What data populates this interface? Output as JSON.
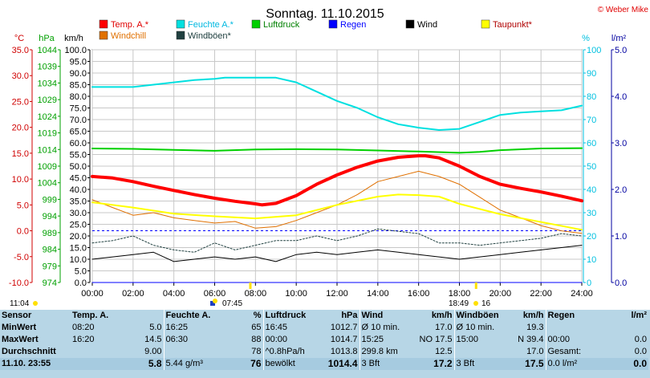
{
  "chart_data": {
    "type": "line",
    "title": "Sonntag. 11.10.2015",
    "watermark": "© Weber Mike",
    "x_ticks": [
      "00:00",
      "02:00",
      "04:00",
      "06:00",
      "08:00",
      "10:00",
      "12:00",
      "14:00",
      "16:00",
      "18:00",
      "20:00",
      "22:00",
      "24:00"
    ],
    "x_range_hours": [
      0,
      24
    ],
    "axes": {
      "temp": {
        "label": "°C",
        "ticks": [
          "35.0",
          "30.0",
          "25.0",
          "20.0",
          "15.0",
          "10.0",
          "5.0",
          "0.0",
          "-5.0",
          "-10.0"
        ],
        "range": [
          -10,
          35
        ],
        "color": "#d00000"
      },
      "pressure": {
        "label": "hPa",
        "ticks": [
          "1044",
          "1039",
          "1034",
          "1029",
          "1024",
          "1019",
          "1014",
          "1009",
          "1004",
          "999",
          "994",
          "989",
          "984",
          "979",
          "974"
        ],
        "range": [
          974,
          1044
        ],
        "color": "#00a000"
      },
      "wind": {
        "label": "km/h",
        "ticks": [
          "100.0",
          "95.0",
          "90.0",
          "85.0",
          "80.0",
          "75.0",
          "70.0",
          "65.0",
          "60.0",
          "55.0",
          "50.0",
          "45.0",
          "40.0",
          "35.0",
          "30.0",
          "25.0",
          "20.0",
          "15.0",
          "10.0",
          "5.0",
          "0.0"
        ],
        "range": [
          0,
          100
        ],
        "color": "#000000"
      },
      "humidity": {
        "label": "%",
        "ticks": [
          "100",
          "90",
          "80",
          "70",
          "60",
          "50",
          "40",
          "30",
          "20",
          "10",
          "0"
        ],
        "range": [
          0,
          100
        ],
        "color": "#00c0e0"
      },
      "rain": {
        "label": "l/m²",
        "ticks": [
          "5.0",
          "4.0",
          "3.0",
          "2.0",
          "1.0",
          "0.0"
        ],
        "range": [
          0,
          5
        ],
        "color": "#0000a0"
      }
    },
    "legend": [
      {
        "name": "Temp. A.*",
        "color": "#ff0000"
      },
      {
        "name": "Feuchte A.*",
        "color": "#00e0e0"
      },
      {
        "name": "Luftdruck",
        "color": "#00d000"
      },
      {
        "name": "Regen",
        "color": "#0000ff"
      },
      {
        "name": "Wind",
        "color": "#000000"
      },
      {
        "name": "Taupunkt*",
        "color": "#ffff00"
      },
      {
        "name": "Windchill",
        "color": "#e07000"
      },
      {
        "name": "Windböen*",
        "color": "#204040"
      }
    ],
    "series": [
      {
        "name": "Temp. A.*",
        "axis": "temp",
        "color": "#ff0000",
        "width": 4,
        "x": [
          0,
          1,
          2,
          3,
          4,
          5,
          6,
          7,
          8,
          8.33,
          9,
          10,
          11,
          12,
          13,
          14,
          15,
          16,
          16.33,
          17,
          18,
          19,
          20,
          21,
          22,
          23,
          24
        ],
        "y": [
          10.5,
          10.2,
          9.5,
          8.6,
          7.8,
          7.0,
          6.3,
          5.7,
          5.2,
          5.0,
          5.3,
          6.8,
          9.0,
          10.8,
          12.3,
          13.5,
          14.2,
          14.5,
          14.5,
          14.1,
          12.5,
          10.5,
          9.0,
          8.2,
          7.5,
          6.7,
          5.8
        ]
      },
      {
        "name": "Feuchte A.*",
        "axis": "humidity",
        "color": "#00e0e0",
        "width": 2,
        "x": [
          0,
          1,
          2,
          3,
          4,
          5,
          6,
          6.5,
          7,
          8,
          9,
          10,
          11,
          12,
          13,
          14,
          15,
          16,
          17,
          18,
          19,
          20,
          21,
          22,
          23,
          24
        ],
        "y": [
          84,
          84,
          84,
          85,
          86,
          87,
          87.5,
          88,
          88,
          88,
          88,
          86,
          82,
          78,
          75,
          71,
          68,
          66.5,
          65.5,
          66,
          69,
          72,
          73,
          73.5,
          74,
          76
        ]
      },
      {
        "name": "Luftdruck",
        "axis": "pressure",
        "color": "#00d000",
        "width": 2,
        "x": [
          0,
          2,
          4,
          6,
          8,
          10,
          12,
          14,
          16,
          18,
          19,
          20,
          22,
          24
        ],
        "y": [
          1014.3,
          1014.2,
          1013.9,
          1013.6,
          1014.0,
          1014.1,
          1014.0,
          1013.7,
          1013.4,
          1013.0,
          1013.3,
          1013.8,
          1014.3,
          1014.4
        ]
      },
      {
        "name": "Taupunkt*",
        "axis": "temp",
        "color": "#ffff00",
        "width": 2,
        "x": [
          0,
          2,
          4,
          6,
          8,
          10,
          12,
          14,
          15,
          16,
          17,
          18,
          20,
          22,
          24
        ],
        "y": [
          5.5,
          4.5,
          3.3,
          2.8,
          2.4,
          3.0,
          5.0,
          6.6,
          7.0,
          6.9,
          6.6,
          5.2,
          3.2,
          1.7,
          0.2
        ]
      },
      {
        "name": "Windchill",
        "axis": "temp",
        "color": "#e07000",
        "width": 1,
        "x": [
          0,
          1,
          2,
          3,
          4,
          5,
          6,
          7,
          8,
          9,
          10,
          11,
          12,
          13,
          14,
          15,
          16,
          17,
          18,
          19,
          20,
          21,
          22,
          23,
          24
        ],
        "y": [
          6.0,
          4.5,
          3.0,
          3.5,
          2.5,
          2.0,
          1.5,
          1.8,
          0.5,
          0.8,
          2.0,
          3.5,
          5.0,
          7.0,
          9.5,
          10.5,
          11.5,
          10.5,
          9.0,
          6.5,
          4.0,
          2.5,
          1.0,
          0.0,
          -0.5
        ]
      },
      {
        "name": "Wind",
        "axis": "wind",
        "color": "#000000",
        "width": 1,
        "x": [
          0,
          1,
          2,
          3,
          4,
          5,
          6,
          7,
          8,
          9,
          10,
          11,
          12,
          13,
          14,
          15,
          16,
          17,
          18,
          19,
          20,
          21,
          22,
          23,
          24
        ],
        "y": [
          10,
          11,
          12,
          13,
          9,
          10,
          11,
          10,
          11,
          9,
          12,
          13,
          12,
          13,
          14,
          13,
          12,
          11,
          10,
          11,
          12,
          13,
          14,
          15,
          16
        ]
      },
      {
        "name": "Windböen*",
        "axis": "wind",
        "color": "#204040",
        "width": 1,
        "dash": "2,2",
        "x": [
          0,
          1,
          2,
          3,
          4,
          5,
          6,
          7,
          8,
          9,
          10,
          11,
          12,
          13,
          14,
          15,
          16,
          17,
          18,
          19,
          20,
          21,
          22,
          23,
          24
        ],
        "y": [
          17,
          18,
          20,
          16,
          14,
          13,
          17,
          14,
          16,
          18,
          18,
          20,
          18,
          20,
          23,
          22,
          21,
          17,
          17,
          16,
          17,
          18,
          19,
          21,
          20
        ]
      },
      {
        "name": "Regen",
        "axis": "rain",
        "color": "#0000ff",
        "width": 1,
        "x": [
          0,
          24
        ],
        "y": [
          0,
          0
        ]
      }
    ],
    "freezing_line_temp": 0,
    "events": {
      "sunrise": "07:45",
      "sunset": "18:49",
      "moonrise": "11:04",
      "moon_day": "16"
    }
  },
  "summary": {
    "headers": [
      "Sensor",
      "Temp. A.",
      "",
      "Feuchte A.",
      "%",
      "Luftdruck",
      "hPa",
      "Wind",
      "km/h",
      "Windböen",
      "km/h",
      "Regen",
      "l/m²"
    ],
    "rows": [
      {
        "label": "MinWert",
        "cells": [
          "08:20",
          "5.0",
          "16:25",
          "65",
          "16:45",
          "1012.7",
          "Ø 10 min.",
          "17.0",
          "Ø 10 min.",
          "19.3",
          "",
          ""
        ]
      },
      {
        "label": "MaxWert",
        "cells": [
          "16:20",
          "14.5",
          "06:30",
          "88",
          "00:00",
          "1014.7",
          "15:25",
          "NO 17.5",
          "15:00",
          "N 39.4",
          "00:00",
          "0.0"
        ]
      },
      {
        "label": "Durchschnitt",
        "cells": [
          "",
          "9.00",
          "",
          "78",
          "^0.8hPa/h",
          "1013.8",
          "299.8 km",
          "12.5",
          "",
          "17.0",
          "Gesamt:",
          "0.0"
        ]
      },
      {
        "label": "11.10. 23:55",
        "cells": [
          "",
          "5.8",
          "5.44 g/m³",
          "76",
          "bewölkt",
          "1014.4",
          "3 Bft",
          "17.2",
          "3 Bft",
          "17.5",
          "0.0 l/m²",
          "0.0"
        ]
      }
    ]
  }
}
